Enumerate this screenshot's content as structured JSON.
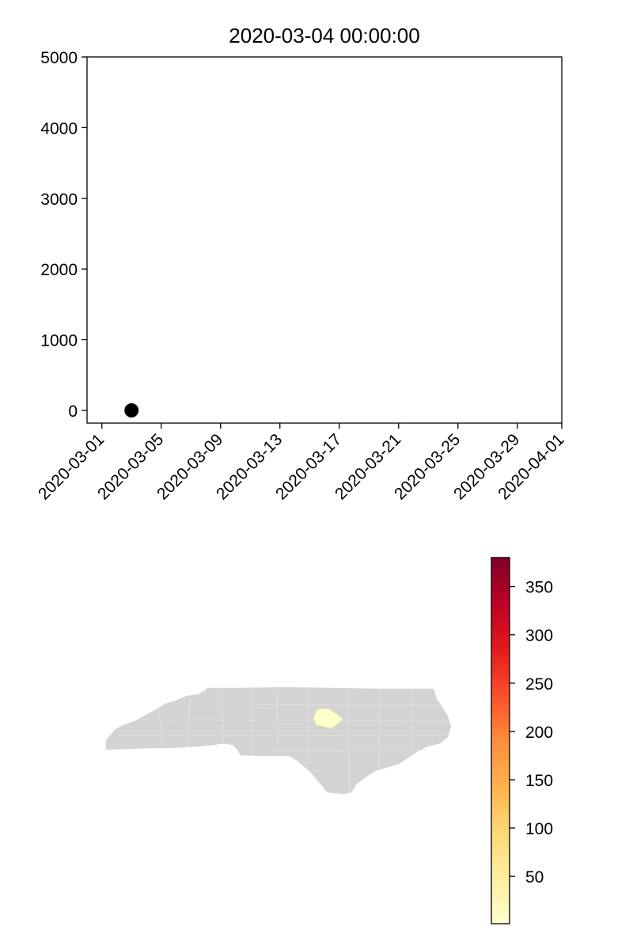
{
  "chart_data": [
    {
      "type": "scatter",
      "title": "2020-03-04 00:00:00",
      "xlabel": "",
      "ylabel": "",
      "x_axis": {
        "kind": "date",
        "range": [
          "2020-02-29",
          "2020-04-01"
        ],
        "tick_labels": [
          "2020-03-01",
          "2020-03-05",
          "2020-03-09",
          "2020-03-13",
          "2020-03-17",
          "2020-03-21",
          "2020-03-25",
          "2020-03-29",
          "2020-04-01"
        ]
      },
      "y_axis": {
        "range": [
          -180,
          5000
        ],
        "tick_labels": [
          "0",
          "1000",
          "2000",
          "3000",
          "4000",
          "5000"
        ],
        "ticks": [
          0,
          1000,
          2000,
          3000,
          4000,
          5000
        ]
      },
      "points": [
        {
          "x": "2020-03-03",
          "y": 0
        }
      ],
      "marker_color": "#000000",
      "grid": false
    },
    {
      "type": "map",
      "region": "North Carolina counties",
      "base_fill": "#d3d3d3",
      "highlighted_region_color": "#ffffcc",
      "colorbar": {
        "colormap": "YlOrRd",
        "range": [
          1,
          380
        ],
        "tick_labels": [
          "50",
          "100",
          "150",
          "200",
          "250",
          "300",
          "350"
        ],
        "ticks": [
          50,
          100,
          150,
          200,
          250,
          300,
          350
        ],
        "stops": [
          "#ffffcc",
          "#ffeda0",
          "#fed976",
          "#feb24c",
          "#fd8d3c",
          "#fc4e2a",
          "#e31a1c",
          "#bd0026",
          "#800026"
        ]
      }
    }
  ]
}
